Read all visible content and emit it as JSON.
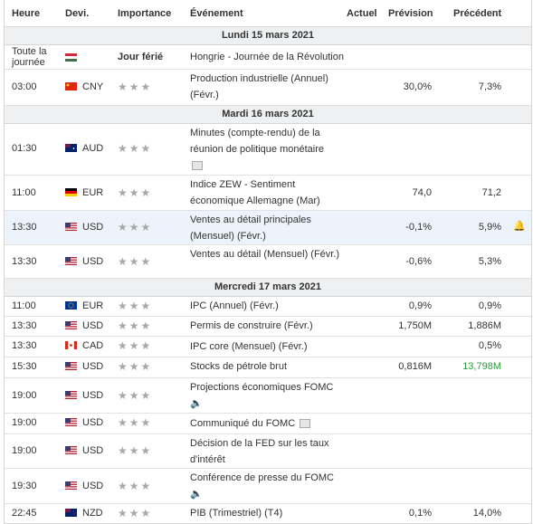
{
  "headers": {
    "time": "Heure",
    "currency": "Devi.",
    "importance": "Importance",
    "event": "Événement",
    "actual": "Actuel",
    "forecast": "Prévision",
    "previous": "Précédent"
  },
  "colors": {
    "previous_highlight": "#2a9d3e",
    "row_highlight": "#edf3fa",
    "day_bg": "#eef0f2"
  },
  "days": [
    {
      "label": "Lundi 15 mars 2021"
    },
    {
      "label": "Mardi 16 mars 2021"
    },
    {
      "label": "Mercredi 17 mars 2021"
    }
  ],
  "rows": [
    {
      "time": "Toute la journée",
      "flag": "hu",
      "currency": "",
      "importance_label": "Jour férié",
      "event": "Hongrie - Journée de la Révolution",
      "forecast": "",
      "previous": ""
    },
    {
      "time": "03:00",
      "flag": "cn",
      "currency": "CNY",
      "importance": 3,
      "event": "Production industrielle (Annuel) (Févr.)",
      "forecast": "30,0%",
      "previous": "7,3%"
    },
    {
      "time": "01:30",
      "flag": "au",
      "currency": "AUD",
      "importance": 3,
      "event": "Minutes (compte-rendu) de la réunion de politique monétaire",
      "forecast": "",
      "previous": ""
    },
    {
      "time": "11:00",
      "flag": "de",
      "currency": "EUR",
      "importance": 3,
      "event": "Indice ZEW - Sentiment économique Allemagne (Mar)",
      "forecast": "74,0",
      "previous": "71,2"
    },
    {
      "time": "13:30",
      "flag": "us",
      "currency": "USD",
      "importance": 3,
      "event": "Ventes au détail principales (Mensuel) (Févr.)",
      "forecast": "-0,1%",
      "previous": "5,9%"
    },
    {
      "time": "13:30",
      "flag": "us",
      "currency": "USD",
      "importance": 3,
      "event": "Ventes au détail (Mensuel) (Févr.)",
      "forecast": "-0,6%",
      "previous": "5,3%"
    },
    {
      "time": "11:00",
      "flag": "eu",
      "currency": "EUR",
      "importance": 3,
      "event": "IPC (Annuel) (Févr.)",
      "forecast": "0,9%",
      "previous": "0,9%"
    },
    {
      "time": "13:30",
      "flag": "us",
      "currency": "USD",
      "importance": 3,
      "event": "Permis de construire (Févr.)",
      "forecast": "1,750M",
      "previous": "1,886M"
    },
    {
      "time": "13:30",
      "flag": "ca",
      "currency": "CAD",
      "importance": 3,
      "event": "IPC core (Mensuel) (Févr.)",
      "forecast": "",
      "previous": "0,5%"
    },
    {
      "time": "15:30",
      "flag": "us",
      "currency": "USD",
      "importance": 3,
      "event": "Stocks de pétrole brut",
      "forecast": "0,816M",
      "previous": "13,798M"
    },
    {
      "time": "19:00",
      "flag": "us",
      "currency": "USD",
      "importance": 3,
      "event": "Projections économiques FOMC",
      "forecast": "",
      "previous": ""
    },
    {
      "time": "19:00",
      "flag": "us",
      "currency": "USD",
      "importance": 3,
      "event": "Communiqué du FOMC",
      "forecast": "",
      "previous": ""
    },
    {
      "time": "19:00",
      "flag": "us",
      "currency": "USD",
      "importance": 3,
      "event": "Décision de la FED sur les taux d'intérêt",
      "forecast": "",
      "previous": ""
    },
    {
      "time": "19:30",
      "flag": "us",
      "currency": "USD",
      "importance": 3,
      "event": "Conférence de presse du FOMC",
      "forecast": "",
      "previous": ""
    },
    {
      "time": "22:45",
      "flag": "nz",
      "currency": "NZD",
      "importance": 3,
      "event": "PIB (Trimestriel) (T4)",
      "forecast": "0,1%",
      "previous": "14,0%"
    }
  ],
  "stars": "★★★"
}
